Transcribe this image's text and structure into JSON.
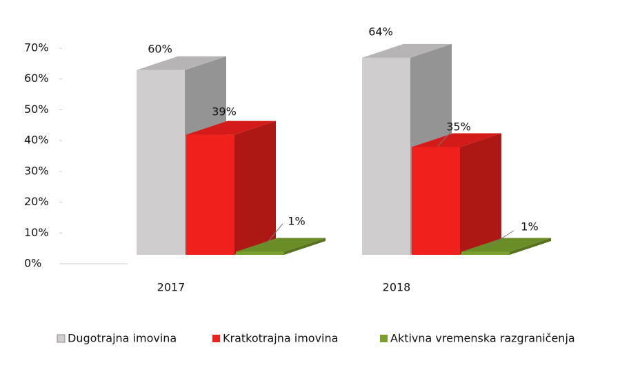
{
  "chart_data": {
    "type": "bar3d",
    "categories": [
      "2017",
      "2018"
    ],
    "series": [
      {
        "name": "Dugotrajna imovina",
        "color": "#cfcdcd",
        "values": [
          60,
          64
        ],
        "value_labels": [
          "60%",
          "64%"
        ]
      },
      {
        "name": "Kratkotrajna imovina",
        "color": "#f0201c",
        "values": [
          39,
          35
        ],
        "value_labels": [
          "39%",
          "35%"
        ]
      },
      {
        "name": "Aktivna vremenska razgraničenja",
        "color": "#7aa02c",
        "values": [
          1,
          1
        ],
        "value_labels": [
          "1%",
          "1%"
        ]
      }
    ],
    "ylim": [
      0,
      70
    ],
    "yticks": [
      {
        "value": 0,
        "label": "0%"
      },
      {
        "value": 10,
        "label": "10%"
      },
      {
        "value": 20,
        "label": "20%"
      },
      {
        "value": 30,
        "label": "30%"
      },
      {
        "value": 40,
        "label": "40%"
      },
      {
        "value": 50,
        "label": "50%"
      },
      {
        "value": 60,
        "label": "60%"
      },
      {
        "value": 70,
        "label": "70%"
      }
    ],
    "legend": "bottom"
  }
}
